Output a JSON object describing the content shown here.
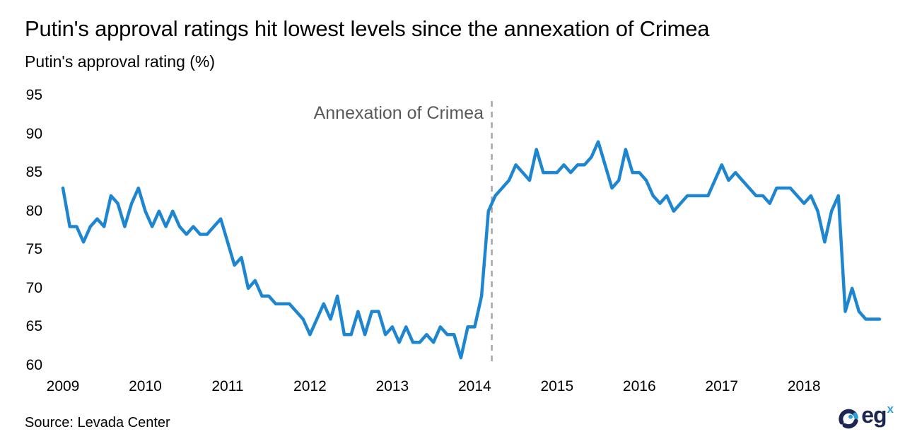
{
  "header": {
    "title": "Putin's approval ratings hit lowest levels since the annexation of Crimea",
    "subtitle": "Putin's approval rating (%)"
  },
  "source": {
    "label": "Source: Levada Center"
  },
  "logo": {
    "text": "eg",
    "sup": "x"
  },
  "colors": {
    "line": "#1e86d0",
    "dashed_line": "#a6a6a6",
    "annotation_text": "#595959",
    "text": "#000000",
    "logo_navy": "#1b2653",
    "logo_blue": "#2d9fd8"
  },
  "chart_data": {
    "type": "line",
    "title": "Putin's approval ratings hit lowest levels since the annexation of Crimea",
    "ylabel": "Putin's approval rating (%)",
    "xlabel": "",
    "ylim": [
      60,
      95
    ],
    "yticks": [
      95,
      90,
      85,
      80,
      75,
      70,
      65,
      60
    ],
    "xticks": [
      "2009",
      "2010",
      "2011",
      "2012",
      "2013",
      "2014",
      "2015",
      "2016",
      "2017",
      "2018"
    ],
    "x_start": "2009-01",
    "x_interval": "monthly",
    "grid": false,
    "legend_position": "none",
    "annotation": {
      "label": "Annexation of Crimea",
      "date": "2014-03",
      "month_index": 62.5
    },
    "series": [
      {
        "name": "Putin's approval rating (%)",
        "values": [
          83,
          78,
          78,
          76,
          78,
          79,
          78,
          82,
          81,
          78,
          81,
          83,
          80,
          78,
          80,
          78,
          80,
          78,
          77,
          78,
          77,
          77,
          78,
          79,
          76,
          73,
          74,
          70,
          71,
          69,
          69,
          68,
          68,
          68,
          67,
          66,
          64,
          66,
          68,
          66,
          69,
          64,
          64,
          67,
          64,
          67,
          67,
          64,
          65,
          63,
          65,
          63,
          63,
          64,
          63,
          65,
          64,
          64,
          61,
          65,
          65,
          69,
          80,
          82,
          83,
          84,
          86,
          85,
          84,
          88,
          85,
          85,
          85,
          86,
          85,
          86,
          86,
          87,
          89,
          86,
          83,
          84,
          88,
          85,
          85,
          84,
          82,
          81,
          82,
          80,
          81,
          82,
          82,
          82,
          82,
          84,
          86,
          84,
          85,
          84,
          83,
          82,
          82,
          81,
          83,
          83,
          83,
          82,
          81,
          82,
          80,
          76,
          80,
          82,
          67,
          70,
          67,
          66,
          66,
          66
        ]
      }
    ]
  }
}
